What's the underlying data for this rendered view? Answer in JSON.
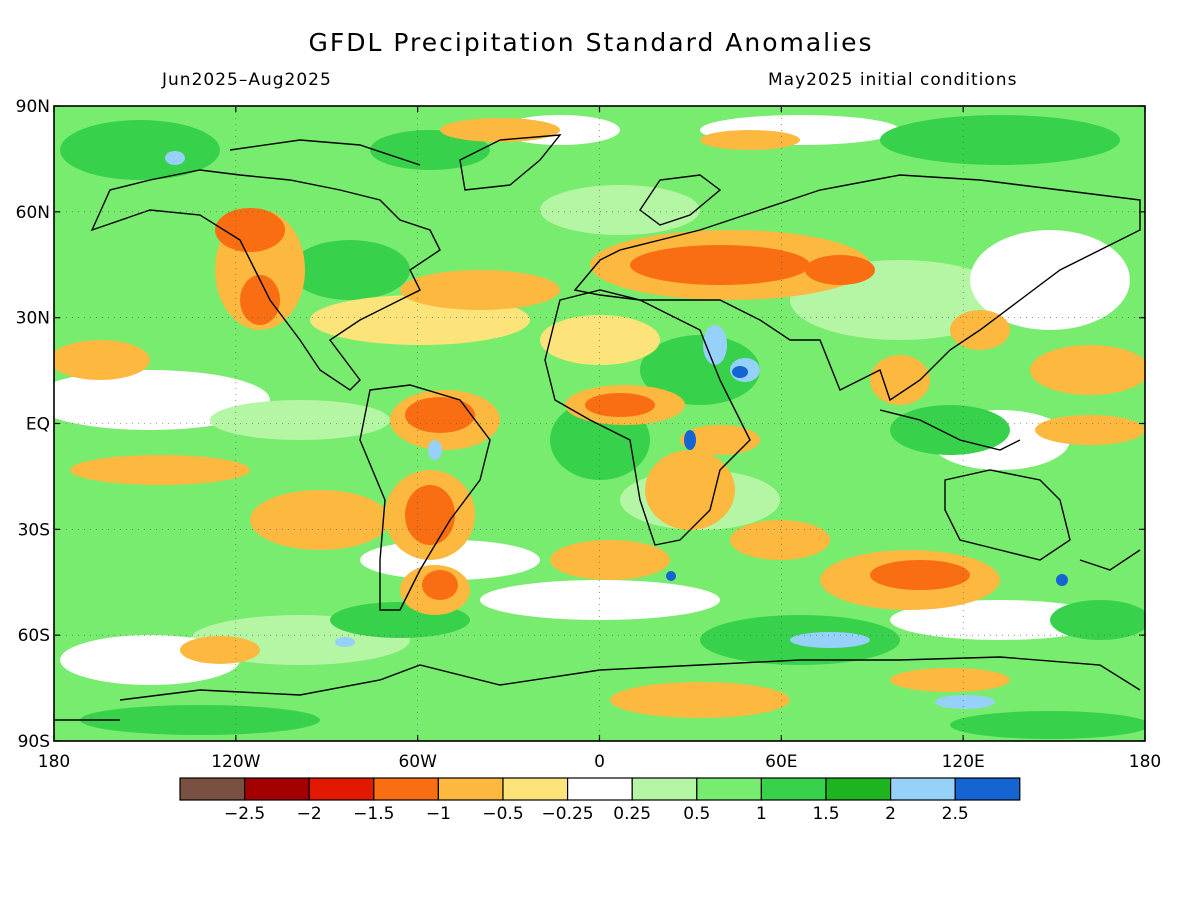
{
  "title": "GFDL Precipitation Standard Anomalies",
  "subtitle_left": "Jun2025–Aug2025",
  "subtitle_right": "May2025 initial conditions",
  "axes": {
    "lat_labels": [
      "90N",
      "60N",
      "30N",
      "EQ",
      "30S",
      "60S",
      "90S"
    ],
    "lon_labels": [
      "180",
      "120W",
      "60W",
      "0",
      "60E",
      "120E",
      "180"
    ],
    "lat_values": [
      90,
      60,
      30,
      0,
      -30,
      -60,
      -90
    ],
    "lon_values": [
      -180,
      -120,
      -60,
      0,
      60,
      120,
      180
    ]
  },
  "colorbar": {
    "colors": [
      "#7a5043",
      "#a30000",
      "#e21900",
      "#f96d13",
      "#fcb83f",
      "#fce47a",
      "#ffffff",
      "#b4f6a4",
      "#78ec6e",
      "#38d14b",
      "#1eb420",
      "#96d1fa",
      "#1464d2"
    ],
    "labels": [
      "−2.5",
      "−2",
      "−1.5",
      "−1",
      "−0.5",
      "−0.25",
      "0.25",
      "0.5",
      "1",
      "1.5",
      "2",
      "2.5"
    ]
  },
  "colors": {
    "ocean_base": "#78ec6e",
    "coastline": "#000000"
  }
}
